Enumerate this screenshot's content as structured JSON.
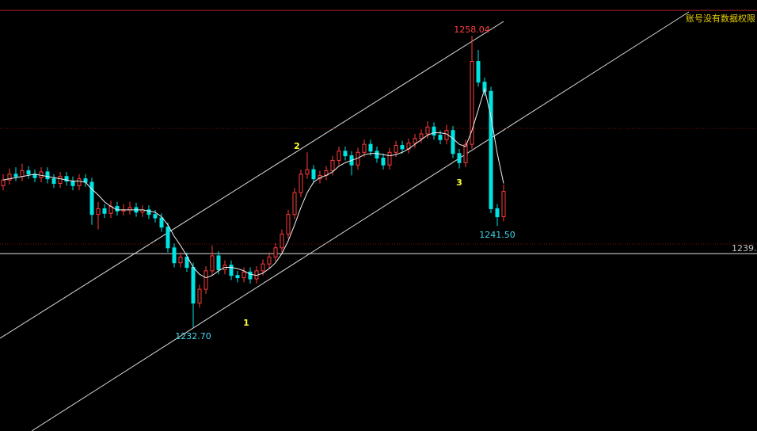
{
  "chart_data": {
    "type": "candlestick",
    "ylim": [
      1223.68,
      1261.14
    ],
    "candles": [
      [
        1245.0,
        1246.0,
        1244.6,
        1245.5
      ],
      [
        1245.5,
        1246.5,
        1245.1,
        1246.0
      ],
      [
        1246.0,
        1246.6,
        1245.4,
        1245.8
      ],
      [
        1245.8,
        1246.9,
        1245.4,
        1246.3
      ],
      [
        1246.3,
        1246.7,
        1245.6,
        1246.0
      ],
      [
        1246.0,
        1246.4,
        1245.3,
        1245.7
      ],
      [
        1245.7,
        1246.6,
        1245.3,
        1246.2
      ],
      [
        1246.2,
        1246.6,
        1245.2,
        1245.6
      ],
      [
        1245.6,
        1246.0,
        1244.8,
        1245.2
      ],
      [
        1245.2,
        1246.2,
        1244.8,
        1245.8
      ],
      [
        1245.8,
        1246.2,
        1245.0,
        1245.4
      ],
      [
        1245.4,
        1245.8,
        1244.6,
        1245.0
      ],
      [
        1245.0,
        1246.0,
        1244.6,
        1245.6
      ],
      [
        1245.6,
        1246.0,
        1244.9,
        1245.3
      ],
      [
        1245.3,
        1245.7,
        1241.6,
        1242.5
      ],
      [
        1242.5,
        1243.6,
        1241.2,
        1243.0
      ],
      [
        1243.0,
        1243.4,
        1242.2,
        1242.6
      ],
      [
        1242.6,
        1243.7,
        1242.2,
        1243.2
      ],
      [
        1243.2,
        1243.6,
        1242.4,
        1242.8
      ],
      [
        1242.8,
        1243.4,
        1242.4,
        1242.9
      ],
      [
        1242.9,
        1243.6,
        1242.5,
        1243.1
      ],
      [
        1243.1,
        1243.5,
        1242.3,
        1242.7
      ],
      [
        1242.7,
        1243.3,
        1242.3,
        1242.9
      ],
      [
        1242.9,
        1243.3,
        1242.1,
        1242.5
      ],
      [
        1242.5,
        1242.9,
        1241.8,
        1242.2
      ],
      [
        1242.2,
        1242.6,
        1241.0,
        1241.4
      ],
      [
        1241.4,
        1241.8,
        1239.2,
        1239.6
      ],
      [
        1239.6,
        1240.0,
        1237.9,
        1238.3
      ],
      [
        1238.3,
        1239.2,
        1237.9,
        1238.8
      ],
      [
        1238.8,
        1239.2,
        1237.5,
        1237.9
      ],
      [
        1237.9,
        1238.3,
        1232.7,
        1234.8
      ],
      [
        1234.8,
        1236.4,
        1234.4,
        1236.0
      ],
      [
        1236.0,
        1238.0,
        1235.6,
        1237.6
      ],
      [
        1237.6,
        1239.8,
        1237.2,
        1238.9
      ],
      [
        1238.9,
        1239.3,
        1237.3,
        1237.7
      ],
      [
        1237.7,
        1238.5,
        1237.3,
        1238.1
      ],
      [
        1238.1,
        1238.5,
        1236.8,
        1237.2
      ],
      [
        1237.2,
        1237.6,
        1236.6,
        1237.0
      ],
      [
        1237.0,
        1237.9,
        1236.6,
        1237.5
      ],
      [
        1237.5,
        1237.9,
        1236.5,
        1236.9
      ],
      [
        1236.9,
        1238.0,
        1236.5,
        1237.6
      ],
      [
        1237.6,
        1238.6,
        1237.2,
        1238.2
      ],
      [
        1238.2,
        1239.2,
        1237.8,
        1238.8
      ],
      [
        1238.8,
        1240.0,
        1238.4,
        1239.6
      ],
      [
        1239.6,
        1241.2,
        1239.2,
        1240.8
      ],
      [
        1240.8,
        1242.9,
        1240.4,
        1242.5
      ],
      [
        1242.5,
        1244.8,
        1242.1,
        1244.4
      ],
      [
        1244.4,
        1246.4,
        1244.0,
        1246.0
      ],
      [
        1246.0,
        1247.9,
        1245.6,
        1246.4
      ],
      [
        1246.4,
        1246.8,
        1245.2,
        1245.6
      ],
      [
        1245.6,
        1246.3,
        1245.2,
        1245.9
      ],
      [
        1245.9,
        1246.7,
        1245.5,
        1246.3
      ],
      [
        1246.3,
        1247.6,
        1245.9,
        1247.2
      ],
      [
        1247.2,
        1248.4,
        1246.8,
        1248.0
      ],
      [
        1248.0,
        1248.4,
        1247.2,
        1247.6
      ],
      [
        1247.6,
        1248.0,
        1245.9,
        1246.8
      ],
      [
        1246.8,
        1248.3,
        1246.4,
        1247.9
      ],
      [
        1247.9,
        1249.0,
        1247.5,
        1248.6
      ],
      [
        1248.6,
        1249.0,
        1247.6,
        1248.0
      ],
      [
        1248.0,
        1248.4,
        1247.0,
        1247.4
      ],
      [
        1247.4,
        1247.8,
        1246.4,
        1246.8
      ],
      [
        1246.8,
        1248.3,
        1246.4,
        1247.9
      ],
      [
        1247.9,
        1248.9,
        1247.5,
        1248.5
      ],
      [
        1248.5,
        1248.9,
        1247.8,
        1248.2
      ],
      [
        1248.2,
        1249.1,
        1247.8,
        1248.7
      ],
      [
        1248.7,
        1249.5,
        1248.3,
        1249.1
      ],
      [
        1249.1,
        1249.9,
        1248.7,
        1249.5
      ],
      [
        1249.5,
        1250.6,
        1249.1,
        1250.1
      ],
      [
        1250.1,
        1250.5,
        1249.0,
        1249.4
      ],
      [
        1249.4,
        1249.8,
        1248.6,
        1249.0
      ],
      [
        1249.0,
        1250.3,
        1248.6,
        1249.8
      ],
      [
        1249.8,
        1250.2,
        1247.4,
        1247.8
      ],
      [
        1247.8,
        1248.2,
        1246.5,
        1247.0
      ],
      [
        1247.0,
        1249.0,
        1246.6,
        1248.6
      ],
      [
        1248.6,
        1258.04,
        1248.2,
        1255.8
      ],
      [
        1255.8,
        1256.8,
        1253.6,
        1254.0
      ],
      [
        1254.0,
        1254.4,
        1252.8,
        1253.2
      ],
      [
        1253.2,
        1253.6,
        1242.6,
        1243.0
      ],
      [
        1243.0,
        1243.4,
        1241.5,
        1242.3
      ],
      [
        1242.3,
        1245.1,
        1241.9,
        1244.5
      ]
    ],
    "ma": [
      1245.5,
      1245.6,
      1245.7,
      1245.8,
      1245.9,
      1246.0,
      1245.9,
      1245.8,
      1245.7,
      1245.6,
      1245.5,
      1245.4,
      1245.4,
      1245.3,
      1244.7,
      1244.2,
      1243.6,
      1243.2,
      1242.9,
      1242.9,
      1242.9,
      1242.9,
      1242.9,
      1242.8,
      1242.7,
      1242.3,
      1241.6,
      1240.6,
      1239.8,
      1238.9,
      1237.9,
      1237.3,
      1237.0,
      1237.2,
      1237.6,
      1237.9,
      1237.9,
      1237.8,
      1237.6,
      1237.3,
      1237.2,
      1237.4,
      1237.8,
      1238.3,
      1239.1,
      1240.2,
      1241.6,
      1243.1,
      1244.4,
      1245.3,
      1245.7,
      1245.9,
      1246.2,
      1246.7,
      1247.0,
      1247.2,
      1247.4,
      1247.7,
      1247.8,
      1247.8,
      1247.7,
      1247.6,
      1247.7,
      1247.9,
      1248.2,
      1248.6,
      1249.0,
      1249.4,
      1249.6,
      1249.6,
      1249.5,
      1249.1,
      1248.6,
      1248.4,
      1249.8,
      1251.6,
      1253.4,
      1251.0,
      1247.8,
      1245.2
    ],
    "extreme_labels": [
      {
        "index": 74,
        "value": 1258.04,
        "label": "1258.04"
      },
      {
        "index": 30,
        "value": 1232.7,
        "label": "1232.70"
      },
      {
        "index": 78,
        "value": 1241.5,
        "label": "1241.50"
      }
    ],
    "levels": [
      1260.24,
      1249.98,
      1239.93
    ],
    "price_line": {
      "value": 1239.1,
      "label": "1239."
    },
    "annotations": [
      "1",
      "2",
      "3"
    ],
    "notice": "账号没有数据权限"
  }
}
